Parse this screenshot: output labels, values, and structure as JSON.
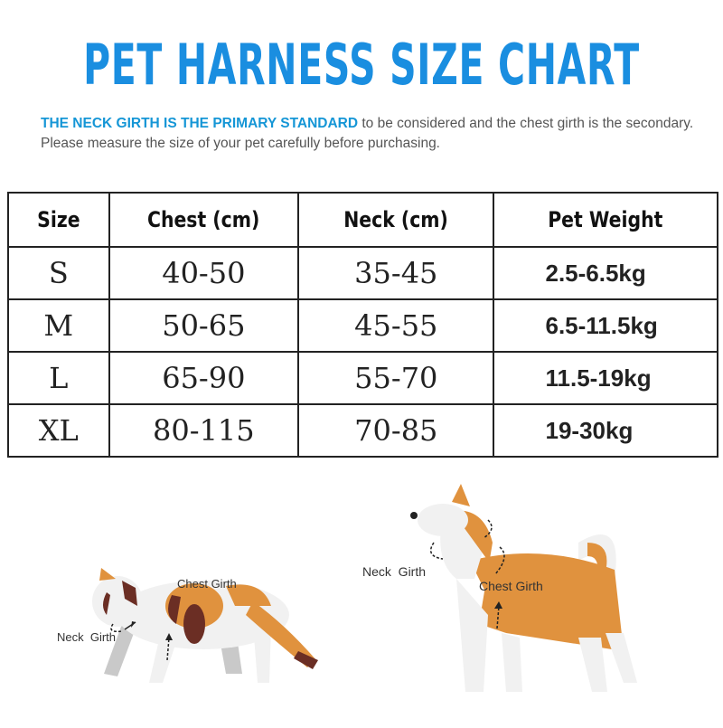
{
  "title": "PET HARNESS SIZE CHART",
  "intro": {
    "highlight": "THE NECK GIRTH IS THE PRIMARY STANDARD",
    "rest": " to be considered and the chest girth is the secondary. Please measure the size of your pet carefully before purchasing."
  },
  "table": {
    "headers": [
      "Size",
      "Chest (cm)",
      "Neck (cm)",
      "Pet Weight"
    ],
    "rows": [
      [
        "S",
        "40-50",
        "35-45",
        "2.5-6.5kg"
      ],
      [
        "M",
        "50-65",
        "45-55",
        "6.5-11.5kg"
      ],
      [
        "L",
        "65-90",
        "55-70",
        "11.5-19kg"
      ],
      [
        "XL",
        "80-115",
        "70-85",
        "19-30kg"
      ]
    ]
  },
  "illustrations": {
    "cat": {
      "chest_label": "Chest Girth",
      "neck_label": "Neck  Girth"
    },
    "dog": {
      "chest_label": "Chest Girth",
      "neck_label": "Neck  Girth"
    }
  },
  "colors": {
    "title": "#1a8ee0",
    "highlight": "#1596d6",
    "fur_orange": "#e0923e",
    "fur_brown": "#6b2e24",
    "fur_white": "#f1f1f1",
    "shadow_gray": "#c9c9c9"
  }
}
